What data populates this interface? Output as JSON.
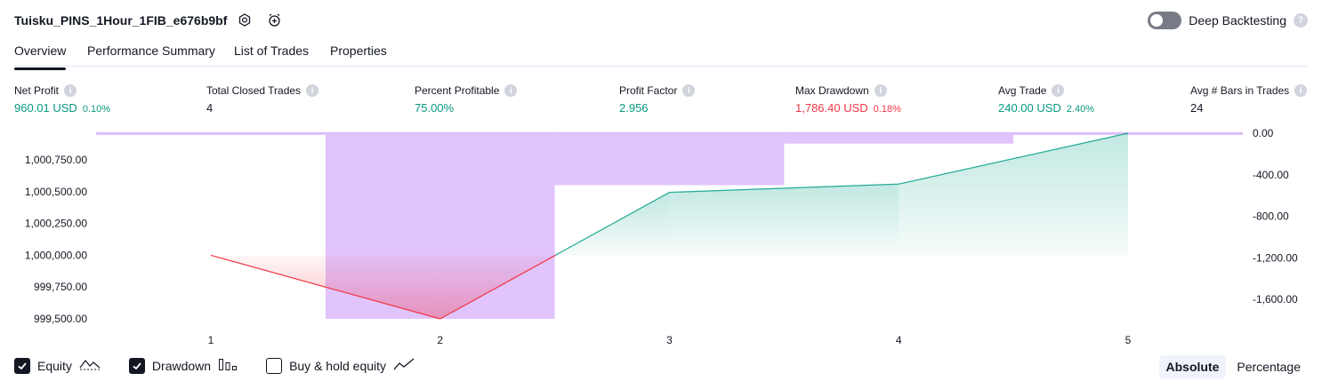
{
  "header": {
    "title": "Tuisku_PINS_1Hour_1FIB_e676b9bf",
    "deep_backtesting_label": "Deep Backtesting",
    "deep_backtesting_on": false,
    "help": "?"
  },
  "tabs": [
    {
      "label": "Overview",
      "active": true
    },
    {
      "label": "Performance Summary",
      "active": false
    },
    {
      "label": "List of Trades",
      "active": false
    },
    {
      "label": "Properties",
      "active": false
    }
  ],
  "metrics": [
    {
      "label": "Net Profit",
      "value": "960.01 USD",
      "sub": "0.10%",
      "tone": "pos"
    },
    {
      "label": "Total Closed Trades",
      "value": "4",
      "sub": "",
      "tone": "neutral"
    },
    {
      "label": "Percent Profitable",
      "value": "75.00%",
      "sub": "",
      "tone": "pos"
    },
    {
      "label": "Profit Factor",
      "value": "2.956",
      "sub": "",
      "tone": "pos"
    },
    {
      "label": "Max Drawdown",
      "value": "1,786.40 USD",
      "sub": "0.18%",
      "tone": "neg"
    },
    {
      "label": "Avg Trade",
      "value": "240.00 USD",
      "sub": "2.40%",
      "tone": "pos"
    },
    {
      "label": "Avg # Bars in Trades",
      "value": "24",
      "sub": "",
      "tone": "neutral"
    }
  ],
  "info_glyph": "i",
  "chart_data": {
    "type": "line",
    "x": [
      1,
      2,
      3,
      4,
      5
    ],
    "equity": [
      1000000,
      999500,
      1000495,
      1000560,
      1000960
    ],
    "drawdown": [
      -5,
      -1786.4,
      -500,
      -100,
      -5
    ],
    "left_ticks": [
      "1,000,750.00",
      "1,000,500.00",
      "1,000,250.00",
      "1,000,000.00",
      "999,750.00",
      "999,500.00"
    ],
    "left_tick_values": [
      1000750,
      1000500,
      1000250,
      1000000,
      999750,
      999500
    ],
    "right_ticks": [
      "0.00",
      "-400.00",
      "-800.00",
      "-1,200.00",
      "-1,600.00"
    ],
    "right_tick_values": [
      0,
      -400,
      -800,
      -1200,
      -1600
    ],
    "x_ticks": [
      "1",
      "2",
      "3",
      "4",
      "5"
    ],
    "ylim_left": [
      999500,
      1000960
    ],
    "ylim_right": [
      -1786.4,
      0
    ],
    "colors": {
      "equity_up": "#22ab94",
      "equity_down": "#f23645",
      "drawdown_fill": "#e1c4fc",
      "drawdown_line": "#d4b3f5"
    }
  },
  "legend": [
    {
      "label": "Equity",
      "checked": true,
      "icon": "equity-line-icon"
    },
    {
      "label": "Drawdown",
      "checked": true,
      "icon": "drawdown-bars-icon"
    },
    {
      "label": "Buy & hold equity",
      "checked": false,
      "icon": "buy-hold-line-icon"
    }
  ],
  "scale_toggle": [
    {
      "label": "Absolute",
      "active": true
    },
    {
      "label": "Percentage",
      "active": false
    }
  ]
}
